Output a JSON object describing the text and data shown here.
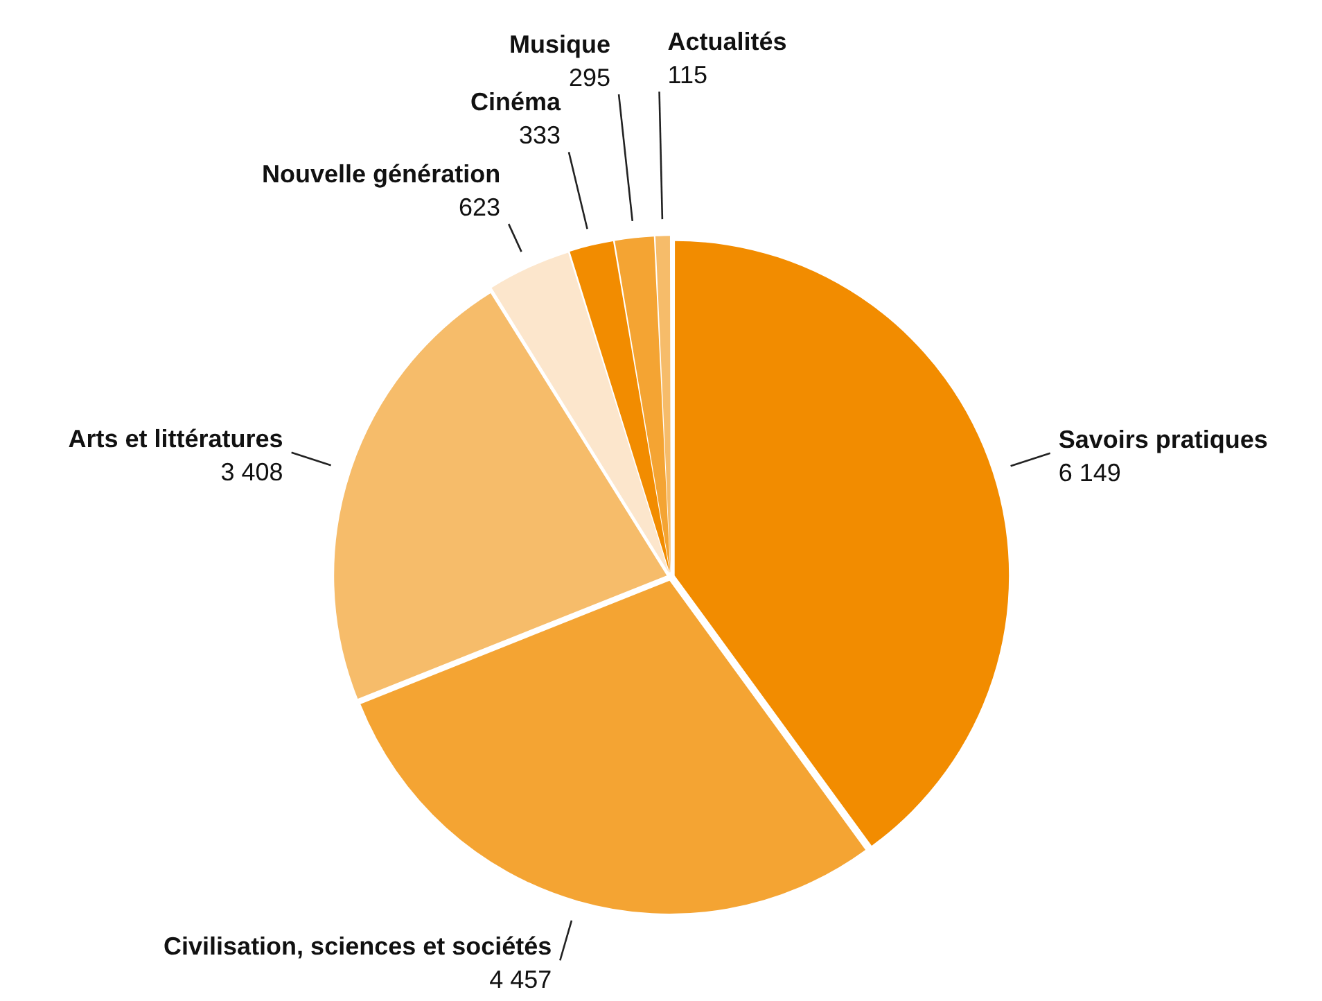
{
  "chart_data": {
    "type": "pie",
    "categories": [
      "Savoirs pratiques",
      "Civilisation, sciences et sociétés",
      "Arts et littératures",
      "Nouvelle génération",
      "Cinéma",
      "Musique",
      "Actualités"
    ],
    "values": [
      6149,
      4457,
      3408,
      623,
      333,
      295,
      115
    ],
    "value_labels": [
      "6 149",
      "4 457",
      "3 408",
      "623",
      "333",
      "295",
      "115"
    ],
    "colors": [
      "#f28c00",
      "#f4a433",
      "#f6bc6a",
      "#fce6cc",
      "#f28c00",
      "#f4a433",
      "#f6bc6a"
    ]
  }
}
